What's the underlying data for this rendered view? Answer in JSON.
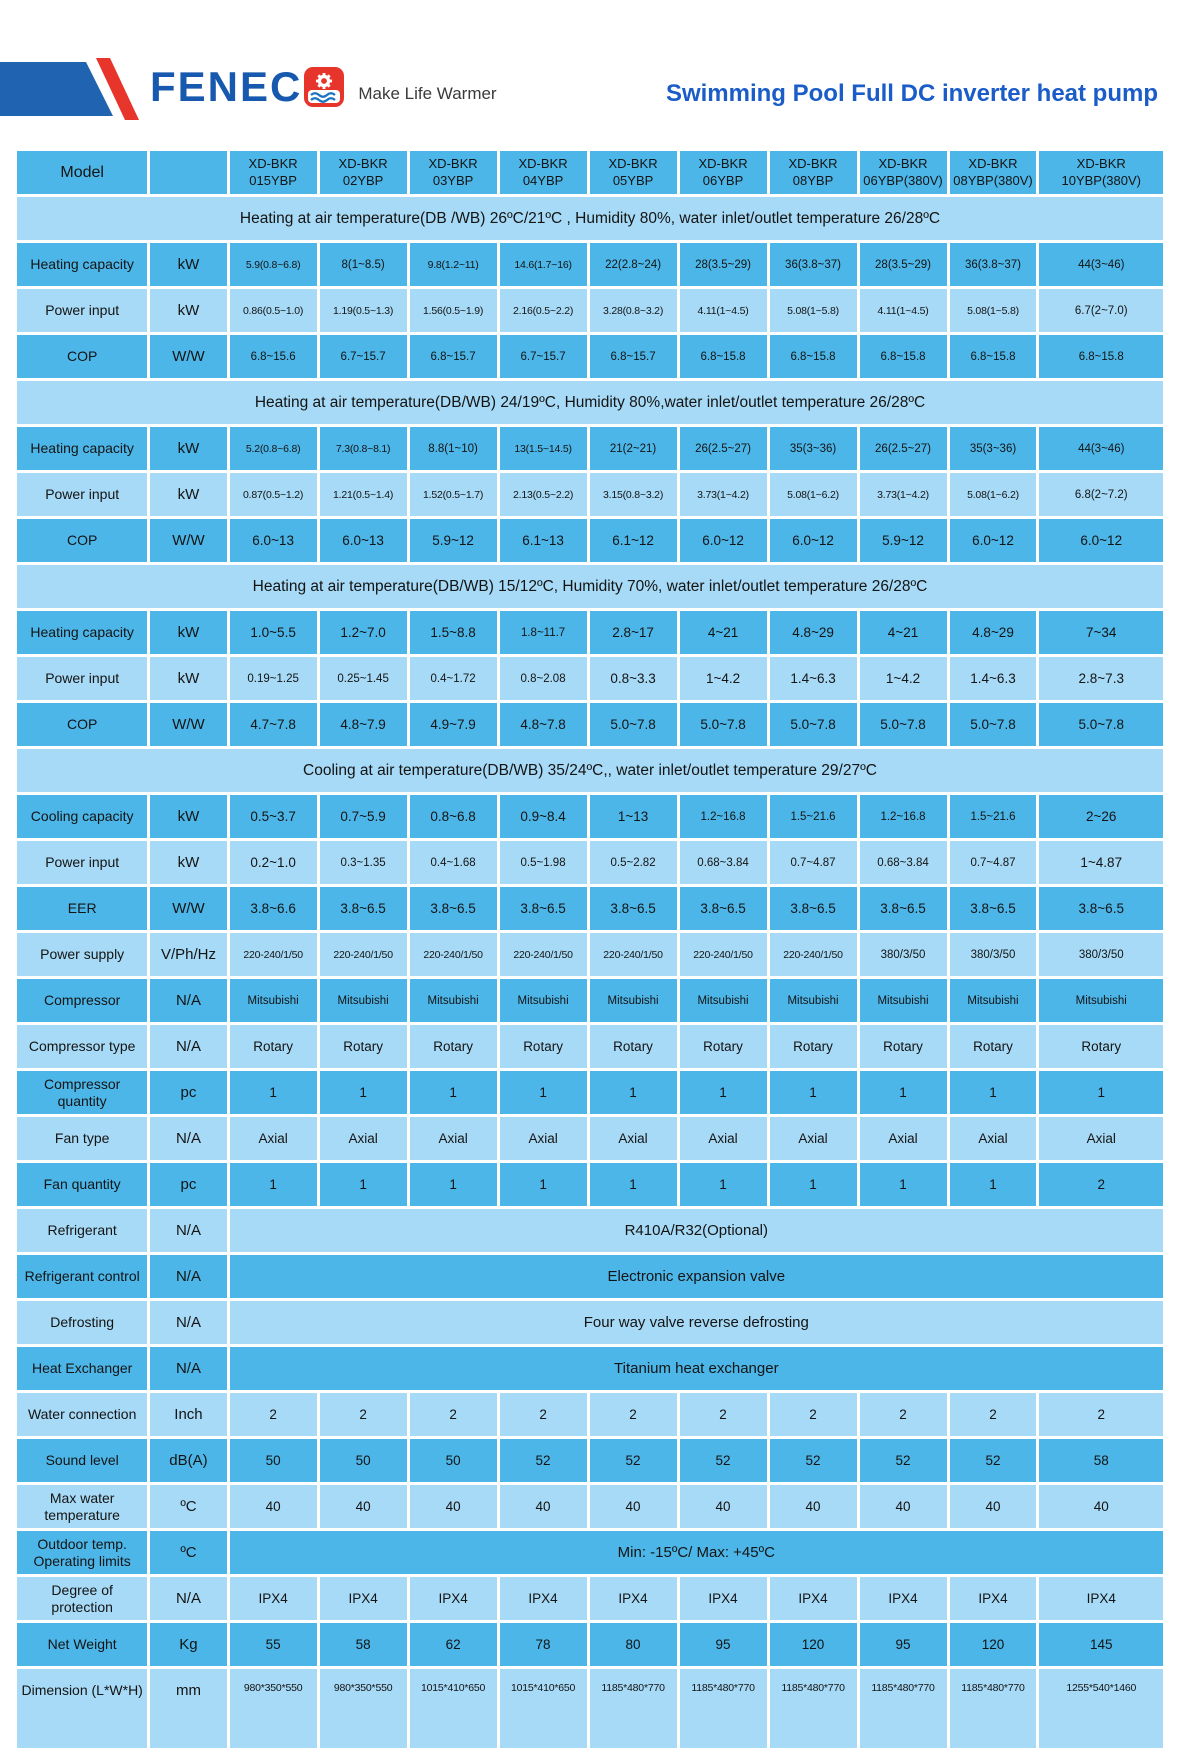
{
  "header": {
    "brand": "FENEC",
    "tagline": "Make Life Warmer",
    "title": "Swimming Pool Full DC inverter heat pump",
    "colors": {
      "brand_blue": "#1659ae",
      "brand_red": "#e8352c",
      "title_blue": "#1a5cc8",
      "flag_blue": "#2063b0"
    }
  },
  "table": {
    "colors": {
      "row_dark": "#4cb6e8",
      "row_light": "#a7daf6",
      "grid": "#ffffff"
    },
    "model_label": "Model",
    "models": [
      "XD-BKR 015YBP",
      "XD-BKR 02YBP",
      "XD-BKR 03YBP",
      "XD-BKR 04YBP",
      "XD-BKR 05YBP",
      "XD-BKR 06YBP",
      "XD-BKR 08YBP",
      "XD-BKR 06YBP(380V)",
      "XD-BKR 08YBP(380V)",
      "XD-BKR 10YBP(380V)"
    ],
    "rows": [
      {
        "section": "Heating at air temperature(DB /WB) 26ºC/21ºC , Humidity 80%, water inlet/outlet temperature 26/28ºC"
      },
      {
        "label": "Heating capacity",
        "unit": "kW",
        "values": [
          "5.9(0.8~6.8)",
          "8(1~8.5)",
          "9.8(1.2~11)",
          "14.6(1.7~16)",
          "22(2.8~24)",
          "28(3.5~29)",
          "36(3.8~37)",
          "28(3.5~29)",
          "36(3.8~37)",
          "44(3~46)"
        ]
      },
      {
        "label": "Power input",
        "unit": "kW",
        "values": [
          "0.86(0.5~1.0)",
          "1.19(0.5~1.3)",
          "1.56(0.5~1.9)",
          "2.16(0.5~2.2)",
          "3.28(0.8~3.2)",
          "4.11(1~4.5)",
          "5.08(1~5.8)",
          "4.11(1~4.5)",
          "5.08(1~5.8)",
          "6.7(2~7.0)"
        ]
      },
      {
        "label": "COP",
        "unit": "W/W",
        "values": [
          "6.8~15.6",
          "6.7~15.7",
          "6.8~15.7",
          "6.7~15.7",
          "6.8~15.7",
          "6.8~15.8",
          "6.8~15.8",
          "6.8~15.8",
          "6.8~15.8",
          "6.8~15.8"
        ]
      },
      {
        "section": "Heating at air temperature(DB/WB) 24/19ºC, Humidity 80%,water inlet/outlet temperature 26/28ºC"
      },
      {
        "label": "Heating capacity",
        "unit": "kW",
        "values": [
          "5.2(0.8~6.8)",
          "7.3(0.8~8.1)",
          "8.8(1~10)",
          "13(1.5~14.5)",
          "21(2~21)",
          "26(2.5~27)",
          "35(3~36)",
          "26(2.5~27)",
          "35(3~36)",
          "44(3~46)"
        ]
      },
      {
        "label": "Power input",
        "unit": "kW",
        "values": [
          "0.87(0.5~1.2)",
          "1.21(0.5~1.4)",
          "1.52(0.5~1.7)",
          "2.13(0.5~2.2)",
          "3.15(0.8~3.2)",
          "3.73(1~4.2)",
          "5.08(1~6.2)",
          "3.73(1~4.2)",
          "5.08(1~6.2)",
          "6.8(2~7.2)"
        ]
      },
      {
        "label": "COP",
        "unit": "W/W",
        "values": [
          "6.0~13",
          "6.0~13",
          "5.9~12",
          "6.1~13",
          "6.1~12",
          "6.0~12",
          "6.0~12",
          "5.9~12",
          "6.0~12",
          "6.0~12"
        ]
      },
      {
        "section": "Heating at air temperature(DB/WB) 15/12ºC, Humidity 70%, water inlet/outlet temperature 26/28ºC"
      },
      {
        "label": "Heating capacity",
        "unit": "kW",
        "values": [
          "1.0~5.5",
          "1.2~7.0",
          "1.5~8.8",
          "1.8~11.7",
          "2.8~17",
          "4~21",
          "4.8~29",
          "4~21",
          "4.8~29",
          "7~34"
        ]
      },
      {
        "label": "Power input",
        "unit": "kW",
        "values": [
          "0.19~1.25",
          "0.25~1.45",
          "0.4~1.72",
          "0.8~2.08",
          "0.8~3.3",
          "1~4.2",
          "1.4~6.3",
          "1~4.2",
          "1.4~6.3",
          "2.8~7.3"
        ]
      },
      {
        "label": "COP",
        "unit": "W/W",
        "values": [
          "4.7~7.8",
          "4.8~7.9",
          "4.9~7.9",
          "4.8~7.8",
          "5.0~7.8",
          "5.0~7.8",
          "5.0~7.8",
          "5.0~7.8",
          "5.0~7.8",
          "5.0~7.8"
        ]
      },
      {
        "section": "Cooling at air temperature(DB/WB) 35/24ºC,, water inlet/outlet temperature 29/27ºC"
      },
      {
        "label": "Cooling capacity",
        "unit": "kW",
        "values": [
          "0.5~3.7",
          "0.7~5.9",
          "0.8~6.8",
          "0.9~8.4",
          "1~13",
          "1.2~16.8",
          "1.5~21.6",
          "1.2~16.8",
          "1.5~21.6",
          "2~26"
        ]
      },
      {
        "label": "Power input",
        "unit": "kW",
        "values": [
          "0.2~1.0",
          "0.3~1.35",
          "0.4~1.68",
          "0.5~1.98",
          "0.5~2.82",
          "0.68~3.84",
          "0.7~4.87",
          "0.68~3.84",
          "0.7~4.87",
          "1~4.87"
        ]
      },
      {
        "label": "EER",
        "unit": "W/W",
        "values": [
          "3.8~6.6",
          "3.8~6.5",
          "3.8~6.5",
          "3.8~6.5",
          "3.8~6.5",
          "3.8~6.5",
          "3.8~6.5",
          "3.8~6.5",
          "3.8~6.5",
          "3.8~6.5"
        ]
      },
      {
        "label": "Power supply",
        "unit": "V/Ph/Hz",
        "values": [
          "220-240/1/50",
          "220-240/1/50",
          "220-240/1/50",
          "220-240/1/50",
          "220-240/1/50",
          "220-240/1/50",
          "220-240/1/50",
          "380/3/50",
          "380/3/50",
          "380/3/50"
        ]
      },
      {
        "label": "Compressor",
        "unit": "N/A",
        "values": [
          "Mitsubishi",
          "Mitsubishi",
          "Mitsubishi",
          "Mitsubishi",
          "Mitsubishi",
          "Mitsubishi",
          "Mitsubishi",
          "Mitsubishi",
          "Mitsubishi",
          "Mitsubishi"
        ]
      },
      {
        "label": "Compressor type",
        "unit": "N/A",
        "values": [
          "Rotary",
          "Rotary",
          "Rotary",
          "Rotary",
          "Rotary",
          "Rotary",
          "Rotary",
          "Rotary",
          "Rotary",
          "Rotary"
        ]
      },
      {
        "label": "Compressor quantity",
        "unit": "pc",
        "values": [
          "1",
          "1",
          "1",
          "1",
          "1",
          "1",
          "1",
          "1",
          "1",
          "1"
        ]
      },
      {
        "label": "Fan type",
        "unit": "N/A",
        "values": [
          "Axial",
          "Axial",
          "Axial",
          "Axial",
          "Axial",
          "Axial",
          "Axial",
          "Axial",
          "Axial",
          "Axial"
        ]
      },
      {
        "label": "Fan quantity",
        "unit": "pc",
        "values": [
          "1",
          "1",
          "1",
          "1",
          "1",
          "1",
          "1",
          "1",
          "1",
          "2"
        ]
      },
      {
        "label": "Refrigerant",
        "unit": "N/A",
        "span": "R410A/R32(Optional)"
      },
      {
        "label": "Refrigerant control",
        "unit": "N/A",
        "span": "Electronic expansion valve"
      },
      {
        "label": "Defrosting",
        "unit": "N/A",
        "span": "Four way valve reverse defrosting"
      },
      {
        "label": "Heat Exchanger",
        "unit": "N/A",
        "span": "Titanium heat exchanger"
      },
      {
        "label": "Water connection",
        "unit": "Inch",
        "values": [
          "2",
          "2",
          "2",
          "2",
          "2",
          "2",
          "2",
          "2",
          "2",
          "2"
        ]
      },
      {
        "label": "Sound level",
        "unit": "dB(A)",
        "values": [
          "50",
          "50",
          "50",
          "52",
          "52",
          "52",
          "52",
          "52",
          "52",
          "58"
        ]
      },
      {
        "label": "Max water temperature",
        "unit": "ºC",
        "values": [
          "40",
          "40",
          "40",
          "40",
          "40",
          "40",
          "40",
          "40",
          "40",
          "40"
        ]
      },
      {
        "label": "Outdoor temp. Operating limits",
        "unit": "ºC",
        "span": "Min: -15ºC/ Max: +45ºC"
      },
      {
        "label": "Degree of protection",
        "unit": "N/A",
        "values": [
          "IPX4",
          "IPX4",
          "IPX4",
          "IPX4",
          "IPX4",
          "IPX4",
          "IPX4",
          "IPX4",
          "IPX4",
          "IPX4"
        ]
      },
      {
        "label": "Net Weight",
        "unit": "Kg",
        "values": [
          "55",
          "58",
          "62",
          "78",
          "80",
          "95",
          "120",
          "95",
          "120",
          "145"
        ]
      },
      {
        "label": "Dimension (L*W*H)",
        "unit": "mm",
        "values": [
          "980*350*550",
          "980*350*550",
          "1015*410*650",
          "1015*410*650",
          "1185*480*770",
          "1185*480*770",
          "1185*480*770",
          "1185*480*770",
          "1185*480*770",
          "1255*540*1460"
        ]
      }
    ]
  }
}
